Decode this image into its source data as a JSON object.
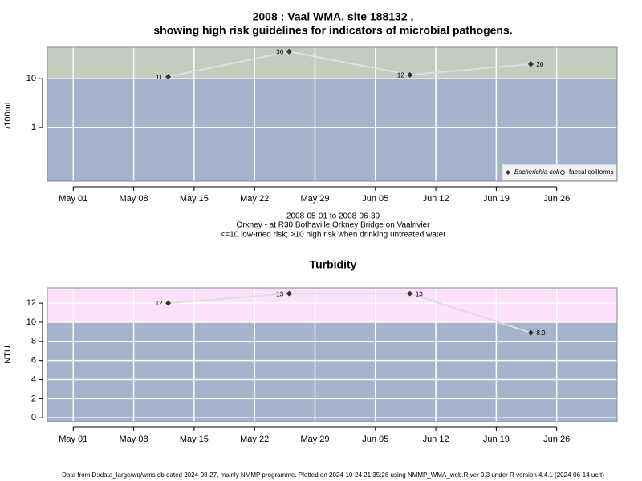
{
  "chart_data": [
    {
      "type": "line",
      "title": [
        "2008 : Vaal WMA, site 188132 ,",
        "showing high risk guidelines for indicators of microbial pathogens."
      ],
      "ylabel": "/100mL",
      "annotations": [
        "2008-05-01 to 2008-06-30",
        "Orkney - at R30 Bothaville Orkney Bridge on Vaalrivier",
        "<=10 low-med risk; >10 high risk when drinking untreated water"
      ],
      "x": [
        "2008-05-12",
        "2008-05-26",
        "2008-06-09",
        "2008-06-23"
      ],
      "series": [
        {
          "name": "Escherichia coli",
          "color": "#333333",
          "line_color": "#dddddd",
          "marker": "diamond",
          "values": [
            11,
            36,
            12,
            20
          ]
        },
        {
          "name": "faecal coliforms",
          "color": "#333333",
          "line_color": "#dddddd",
          "marker": "circle",
          "values": [
            null,
            null,
            null,
            null
          ]
        }
      ],
      "log_y": true,
      "ylim": [
        0.08,
        44
      ],
      "yticks": [
        1,
        10
      ],
      "xlim": [
        "2008-04-28",
        "2008-07-03"
      ],
      "xticks": [
        {
          "value": "2008-05-01",
          "label": "May 01"
        },
        {
          "value": "2008-05-08",
          "label": "May 08"
        },
        {
          "value": "2008-05-15",
          "label": "May 15"
        },
        {
          "value": "2008-05-22",
          "label": "May 22"
        },
        {
          "value": "2008-05-29",
          "label": "May 29"
        },
        {
          "value": "2008-06-05",
          "label": "Jun 05"
        },
        {
          "value": "2008-06-12",
          "label": "Jun 12"
        },
        {
          "value": "2008-06-19",
          "label": "Jun 19"
        },
        {
          "value": "2008-06-26",
          "label": "Jun 26"
        }
      ],
      "threshold": 10,
      "above_color": "#c4ccc0",
      "below_color": "#a3b4cc",
      "grid": true,
      "legend": "lower right"
    },
    {
      "type": "line",
      "title": [
        "Turbidity"
      ],
      "ylabel": "NTU",
      "x": [
        "2008-05-12",
        "2008-05-26",
        "2008-06-09",
        "2008-06-23"
      ],
      "series": [
        {
          "name": "Turbidity",
          "color": "#333333",
          "line_color": "#dddddd",
          "marker": "diamond",
          "values": [
            12,
            13,
            13,
            8.9
          ]
        }
      ],
      "log_y": false,
      "ylim": [
        -0.4,
        13.6
      ],
      "yticks": [
        0,
        2,
        4,
        6,
        8,
        10,
        12
      ],
      "xlim": [
        "2008-04-28",
        "2008-07-03"
      ],
      "xticks": [
        {
          "value": "2008-05-01",
          "label": "May 01"
        },
        {
          "value": "2008-05-08",
          "label": "May 08"
        },
        {
          "value": "2008-05-15",
          "label": "May 15"
        },
        {
          "value": "2008-05-22",
          "label": "May 22"
        },
        {
          "value": "2008-05-29",
          "label": "May 29"
        },
        {
          "value": "2008-06-05",
          "label": "Jun 05"
        },
        {
          "value": "2008-06-12",
          "label": "Jun 12"
        },
        {
          "value": "2008-06-19",
          "label": "Jun 19"
        },
        {
          "value": "2008-06-26",
          "label": "Jun 26"
        }
      ],
      "threshold": 10,
      "above_color": "#fce0fc",
      "below_color": "#a3b4cc",
      "grid": true
    }
  ],
  "footer": "Data from D:/data_large/wq/wms.db dated 2024-08-27, mainly NMMP programme. Plotted on 2024-10-24 21:35:26 using NMMP_WMA_web.R ver 9.3 under R version 4.4.1 (2024-06-14 ucrt)"
}
